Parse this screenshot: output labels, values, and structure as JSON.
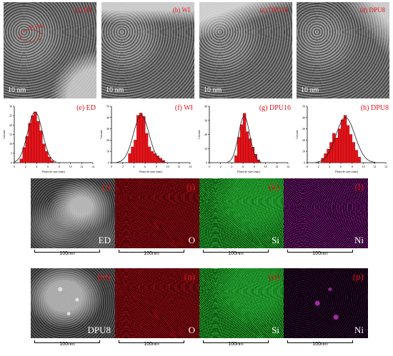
{
  "tem_panels": [
    {
      "label": "(a) ED",
      "scalebar": "10 nm",
      "annotation": "ca. 2nm"
    },
    {
      "label": "(b) WI",
      "scalebar": "10 nm"
    },
    {
      "label": "(c) DPU16",
      "scalebar": "10 nm"
    },
    {
      "label": "(d) DPU8",
      "scalebar": "10 nm"
    }
  ],
  "chart_data": [
    {
      "type": "bar",
      "title": "(e) ED",
      "xlabel": "Particle size (nm)",
      "ylabel": "Counts",
      "xlim": [
        0,
        14
      ],
      "ylim": [
        0,
        30
      ],
      "xticks": [
        0,
        2,
        4,
        6,
        8,
        10,
        12,
        14
      ],
      "yticks": [
        0,
        5,
        10,
        15,
        20,
        25,
        30
      ],
      "x": [
        1.25,
        1.75,
        2.25,
        2.75,
        3.25,
        3.75,
        4.25,
        4.75,
        5.25,
        5.75,
        6.25,
        6.75
      ],
      "values": [
        2,
        8,
        14,
        21,
        25,
        27,
        22,
        17,
        10,
        6,
        3,
        1
      ],
      "fit": "gaussian",
      "fit_mu": 3.7,
      "fit_sigma": 1.3,
      "fit_peak": 27
    },
    {
      "type": "bar",
      "title": "(f) WI",
      "xlabel": "Particle size (nm)",
      "ylabel": "Counts",
      "xlim": [
        0,
        14
      ],
      "ylim": [
        0,
        50
      ],
      "xticks": [
        0,
        2,
        4,
        6,
        8,
        10,
        12,
        14
      ],
      "yticks": [
        0,
        10,
        20,
        30,
        40,
        50
      ],
      "x": [
        3.25,
        3.75,
        4.25,
        4.75,
        5.25,
        5.75,
        6.25,
        6.75,
        7.25,
        7.75,
        8.25,
        8.75,
        9.25
      ],
      "values": [
        8,
        14,
        20,
        42,
        44,
        41,
        26,
        14,
        10,
        8,
        6,
        4,
        2
      ],
      "fit": "gaussian",
      "fit_mu": 5.3,
      "fit_sigma": 1.4,
      "fit_peak": 42
    },
    {
      "type": "bar",
      "title": "(g) DPU16",
      "xlabel": "Particle size (nm)",
      "ylabel": "Counts",
      "xlim": [
        0,
        14
      ],
      "ylim": [
        0,
        40
      ],
      "xticks": [
        0,
        2,
        4,
        6,
        8,
        10,
        12,
        14
      ],
      "yticks": [
        0,
        10,
        20,
        30,
        40
      ],
      "x": [
        4.75,
        5.25,
        5.75,
        6.25,
        6.75,
        7.25,
        7.75,
        8.25,
        8.75
      ],
      "values": [
        5,
        18,
        27,
        35,
        22,
        17,
        11,
        6,
        2
      ],
      "fit": "gaussian",
      "fit_mu": 6.2,
      "fit_sigma": 1.0,
      "fit_peak": 33
    },
    {
      "type": "bar",
      "title": "(h) DPU8",
      "xlabel": "Particle size (nm)",
      "ylabel": "Counts",
      "xlim": [
        0,
        14
      ],
      "ylim": [
        0,
        50
      ],
      "xticks": [
        0,
        2,
        4,
        6,
        8,
        10,
        12,
        14
      ],
      "yticks": [
        0,
        10,
        20,
        30,
        40,
        50
      ],
      "x": [
        2.75,
        3.25,
        3.75,
        4.25,
        4.75,
        5.25,
        5.75,
        6.25,
        6.75,
        7.25,
        7.75,
        8.25,
        8.75,
        9.25
      ],
      "values": [
        4,
        8,
        12,
        18,
        26,
        22,
        30,
        38,
        42,
        33,
        25,
        18,
        11,
        5
      ],
      "fit": "gaussian",
      "fit_mu": 6.8,
      "fit_sigma": 1.7,
      "fit_peak": 40
    }
  ],
  "eds_rows": [
    {
      "panels": [
        {
          "label": "(i)",
          "element": "ED",
          "kind": "haadf",
          "scalebar": "100nm"
        },
        {
          "label": "(j)",
          "element": "O",
          "kind": "o",
          "scalebar": "100nm"
        },
        {
          "label": "(k)",
          "element": "Si",
          "kind": "si",
          "scalebar": "100nm"
        },
        {
          "label": "(l)",
          "element": "Ni",
          "kind": "ni",
          "scalebar": "100nm"
        }
      ]
    },
    {
      "panels": [
        {
          "label": "(m)",
          "element": "DPU8",
          "kind": "haadf",
          "scalebar": "100nm"
        },
        {
          "label": "(n)",
          "element": "O",
          "kind": "o",
          "scalebar": "100nm"
        },
        {
          "label": "(o)",
          "element": "Si",
          "kind": "si",
          "scalebar": "100nm"
        },
        {
          "label": "(p)",
          "element": "Ni",
          "kind": "ni2",
          "scalebar": "100nm"
        }
      ]
    }
  ],
  "colors": {
    "bar": "#e3141b",
    "bar_edge": "#8a0000",
    "fit": "#222222",
    "label": "#e0141a"
  }
}
